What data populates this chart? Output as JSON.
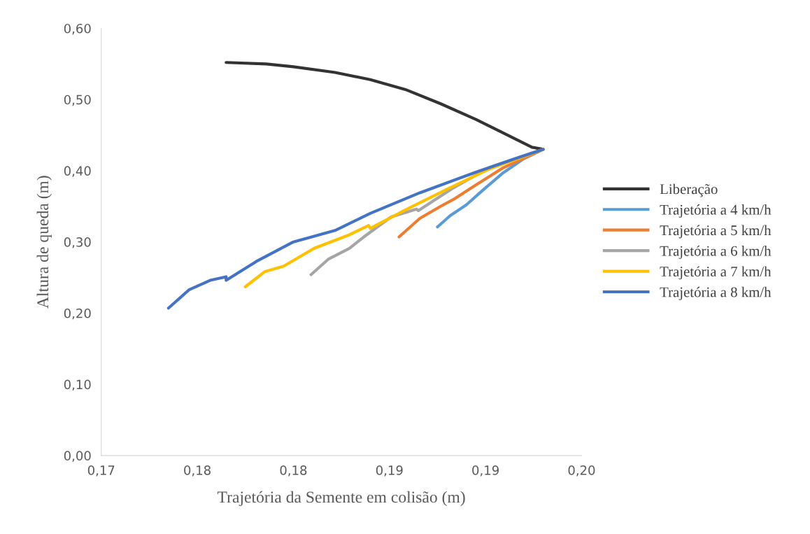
{
  "chart_data": {
    "type": "line",
    "xlabel": "Trajetória da Semente em colisão (m)",
    "ylabel": "Altura de queda (m)",
    "xlim": [
      0.17,
      0.2
    ],
    "xticks": [
      {
        "value": 0.17,
        "label": "0,17"
      },
      {
        "value": 0.176,
        "label": "0,18"
      },
      {
        "value": 0.182,
        "label": "0,18"
      },
      {
        "value": 0.188,
        "label": "0,19"
      },
      {
        "value": 0.194,
        "label": "0,19"
      },
      {
        "value": 0.2,
        "label": "0,20"
      }
    ],
    "ylim": [
      0,
      0.6
    ],
    "yticks": [
      {
        "value": 0,
        "label": "0,00"
      },
      {
        "value": 0.1,
        "label": "0,10"
      },
      {
        "value": 0.2,
        "label": "0,20"
      },
      {
        "value": 0.3,
        "label": "0,30"
      },
      {
        "value": 0.4,
        "label": "0,40"
      },
      {
        "value": 0.5,
        "label": "0,50"
      },
      {
        "value": 0.6,
        "label": "0,60"
      }
    ],
    "grid": false,
    "legend": "right",
    "marker": "none",
    "line_style": "solid",
    "series": [
      {
        "name": "Liberação",
        "color": "#333333",
        "x": [
          0.1778,
          0.1803,
          0.182,
          0.1846,
          0.1868,
          0.189,
          0.1912,
          0.1934,
          0.1951,
          0.1969,
          0.1976
        ],
        "values": [
          0.552,
          0.55,
          0.546,
          0.538,
          0.528,
          0.514,
          0.494,
          0.472,
          0.453,
          0.433,
          0.43
        ]
      },
      {
        "name": "Trajetória a 4 km/h",
        "color": "#5b9bd5",
        "x": [
          0.191,
          0.1918,
          0.1928,
          0.1938,
          0.1951,
          0.1964,
          0.1976
        ],
        "values": [
          0.321,
          0.337,
          0.352,
          0.372,
          0.397,
          0.417,
          0.43
        ]
      },
      {
        "name": "Trajetória a 5 km/h",
        "color": "#ed7d31",
        "x": [
          0.1886,
          0.1899,
          0.1912,
          0.1921,
          0.1934,
          0.1951,
          0.1976
        ],
        "values": [
          0.307,
          0.333,
          0.35,
          0.361,
          0.38,
          0.404,
          0.43
        ]
      },
      {
        "name": "Trajetória a 6 km/h",
        "color": "#a5a5a5",
        "x": [
          0.1831,
          0.1842,
          0.1855,
          0.1864,
          0.1881,
          0.1897,
          0.1898,
          0.192,
          0.1942,
          0.1976
        ],
        "values": [
          0.254,
          0.276,
          0.291,
          0.307,
          0.335,
          0.346,
          0.344,
          0.376,
          0.404,
          0.43
        ]
      },
      {
        "name": "Trajetória a 7 km/h",
        "color": "#ffc000",
        "x": [
          0.179,
          0.1802,
          0.1814,
          0.1833,
          0.1855,
          0.1867,
          0.1868,
          0.189,
          0.1916,
          0.1942,
          0.1976
        ],
        "values": [
          0.237,
          0.258,
          0.266,
          0.291,
          0.31,
          0.323,
          0.319,
          0.345,
          0.374,
          0.402,
          0.43
        ]
      },
      {
        "name": "Trajetória a 8 km/h",
        "color": "#4472c4",
        "x": [
          0.1742,
          0.1755,
          0.1768,
          0.1778,
          0.1778,
          0.1798,
          0.182,
          0.1846,
          0.1868,
          0.1899,
          0.1934,
          0.196,
          0.1976
        ],
        "values": [
          0.207,
          0.233,
          0.246,
          0.251,
          0.246,
          0.274,
          0.3,
          0.316,
          0.34,
          0.369,
          0.398,
          0.418,
          0.43
        ]
      }
    ]
  }
}
